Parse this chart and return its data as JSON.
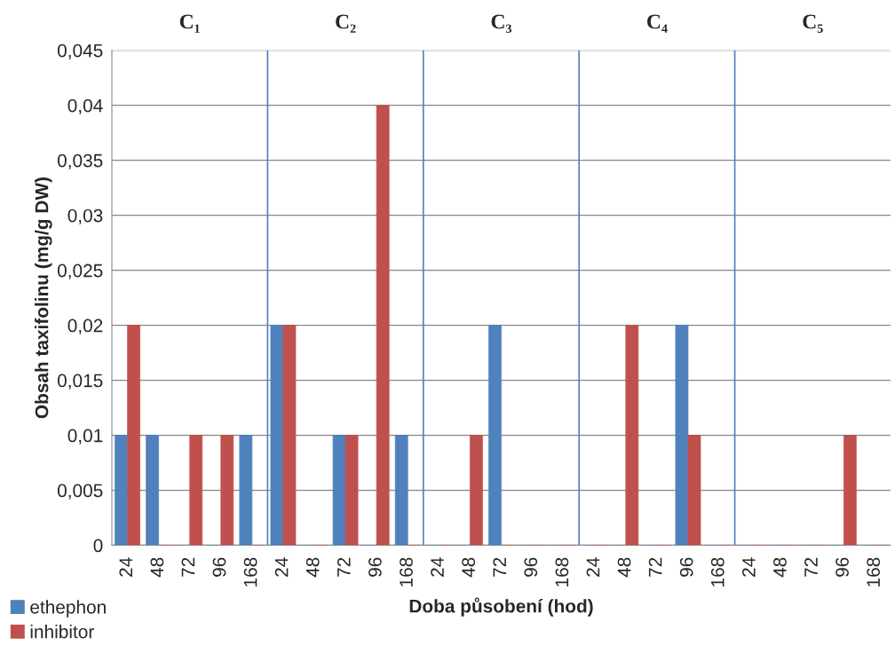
{
  "chart_data": {
    "type": "bar",
    "xlabel": "Doba působení (hod)",
    "ylabel": "Obsah taxifolinu (mg/g DW)",
    "categories": [
      "24",
      "48",
      "72",
      "96",
      "168",
      "24",
      "48",
      "72",
      "96",
      "168",
      "24",
      "48",
      "72",
      "96",
      "168",
      "24",
      "48",
      "72",
      "96",
      "168",
      "24",
      "48",
      "72",
      "96",
      "168"
    ],
    "series": [
      {
        "name": "ethephon",
        "color": "#4f81bd",
        "values": [
          0.01,
          0.01,
          0,
          0,
          0.01,
          0.02,
          0,
          0.01,
          0,
          0.01,
          0,
          0,
          0.02,
          0,
          0,
          0,
          0,
          0,
          0.02,
          0,
          0,
          0,
          0,
          0,
          0
        ]
      },
      {
        "name": "inhibitor",
        "color": "#c0504d",
        "values": [
          0.02,
          0,
          0.01,
          0.01,
          0,
          0.02,
          0,
          0.01,
          0.04,
          0,
          0,
          0.01,
          0,
          0,
          0,
          0,
          0.02,
          0,
          0.01,
          0,
          0,
          0,
          0,
          0.01,
          0
        ]
      }
    ],
    "ylim": [
      0,
      0.045
    ],
    "yticks": [
      {
        "value": 0,
        "label": "0"
      },
      {
        "value": 0.005,
        "label": "0,005"
      },
      {
        "value": 0.01,
        "label": "0,01"
      },
      {
        "value": 0.015,
        "label": "0,015"
      },
      {
        "value": 0.02,
        "label": "0,02"
      },
      {
        "value": 0.025,
        "label": "0,025"
      },
      {
        "value": 0.03,
        "label": "0,03"
      },
      {
        "value": 0.035,
        "label": "0,035"
      },
      {
        "value": 0.04,
        "label": "0,04"
      },
      {
        "value": 0.045,
        "label": "0,045"
      }
    ],
    "annotations": [
      "C₁",
      "C₂",
      "C₃",
      "C₄",
      "C₅"
    ],
    "grid": "y",
    "legend": "bottom left"
  }
}
